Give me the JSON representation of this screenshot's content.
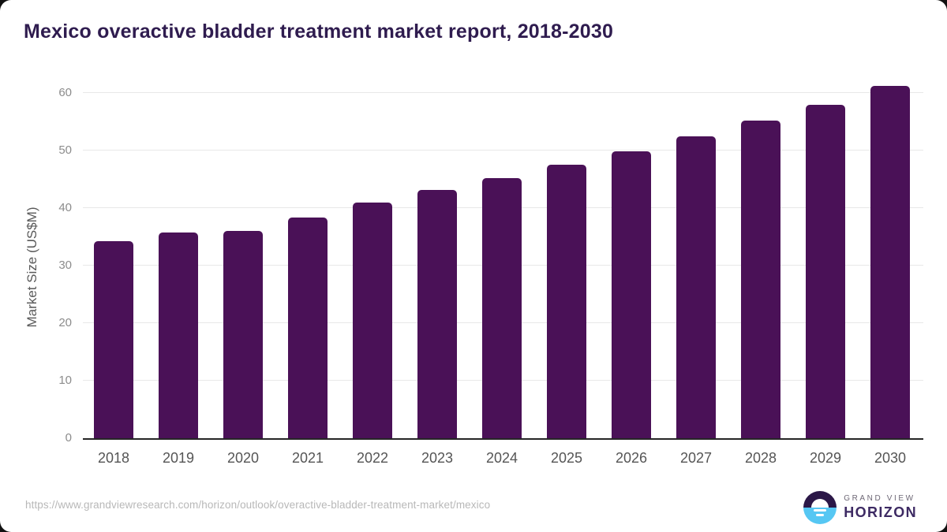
{
  "title": "Mexico overactive bladder treatment market report, 2018-2030",
  "chart_data": {
    "type": "bar",
    "categories": [
      "2018",
      "2019",
      "2020",
      "2021",
      "2022",
      "2023",
      "2024",
      "2025",
      "2026",
      "2027",
      "2028",
      "2029",
      "2030"
    ],
    "values": [
      34.2,
      35.7,
      36.0,
      38.4,
      41.0,
      43.1,
      45.2,
      47.5,
      49.9,
      52.4,
      55.2,
      58.0,
      61.2
    ],
    "title": "Mexico overactive bladder treatment market report, 2018-2030",
    "xlabel": "",
    "ylabel": "Market Size (US$M)",
    "ylim": [
      0,
      62
    ],
    "yticks": [
      0,
      10,
      20,
      30,
      40,
      50,
      60
    ],
    "bar_color": "#4a1157",
    "grid": "horizontal",
    "legend": "none"
  },
  "footer": {
    "source_url": "https://www.grandviewresearch.com/horizon/outlook/overactive-bladder-treatment-market/mexico",
    "brand_line1": "GRAND VIEW",
    "brand_line2": "HORIZON"
  },
  "colors": {
    "title_text": "#2f1c4f",
    "bar": "#4a1157",
    "gridline": "#e8e8e8",
    "axis_line": "#262626",
    "y_tick_text": "#8c8c8c",
    "x_tick_text": "#555555",
    "source_text": "#b8b8b8",
    "logo_purple": "#2b1747",
    "logo_blue": "#56c7f3"
  }
}
